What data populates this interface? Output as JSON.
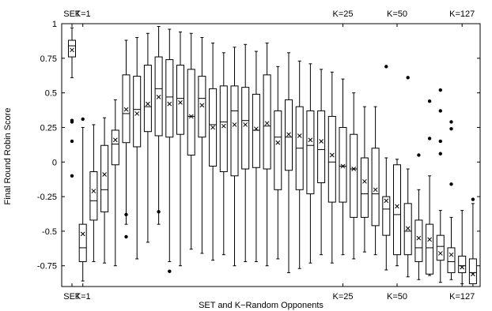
{
  "chart_data": {
    "type": "boxplot",
    "xlabel": "SET and K−Random Opponents",
    "ylabel": "Final Round Robin Score",
    "ylim": [
      -0.9,
      1.0
    ],
    "yticks": [
      "1",
      "0.75",
      "0.5",
      "0.25",
      "0",
      "-0.25",
      "-0.5",
      "-0.75"
    ],
    "ytick_values": [
      1,
      0.75,
      0.5,
      0.25,
      0,
      -0.25,
      -0.5,
      -0.75
    ],
    "top_labels": [
      {
        "label": "SET",
        "index": 0
      },
      {
        "label": "K=1",
        "index": 1
      },
      {
        "label": "K=25",
        "index": 25
      },
      {
        "label": "K=50",
        "index": 30
      },
      {
        "label": "K=127",
        "index": 36
      }
    ],
    "bottom_labels": [
      {
        "label": "SET",
        "index": 0
      },
      {
        "label": "K=1",
        "index": 1
      },
      {
        "label": "K=25",
        "index": 25
      },
      {
        "label": "K=50",
        "index": 30
      },
      {
        "label": "K=127",
        "index": 36
      }
    ],
    "boxes": [
      {
        "whislo": 0.61,
        "q1": 0.76,
        "med": 0.84,
        "q3": 0.88,
        "whishi": 0.97,
        "mean": 0.81,
        "fliers": [
          0.3,
          0.29,
          0.15,
          -0.1
        ]
      },
      {
        "whislo": -0.86,
        "q1": -0.72,
        "med": -0.62,
        "q3": -0.45,
        "whishi": 0.25,
        "mean": -0.52,
        "fliers": [
          0.31
        ]
      },
      {
        "whislo": -0.72,
        "q1": -0.42,
        "med": -0.28,
        "q3": -0.07,
        "whishi": 0.27,
        "mean": -0.21,
        "fliers": []
      },
      {
        "whislo": -0.73,
        "q1": -0.36,
        "med": -0.2,
        "q3": 0.12,
        "whishi": 0.32,
        "mean": -0.09,
        "fliers": []
      },
      {
        "whislo": -0.75,
        "q1": -0.02,
        "med": 0.13,
        "q3": 0.23,
        "whishi": 0.45,
        "mean": 0.16,
        "fliers": []
      },
      {
        "whislo": -0.45,
        "q1": 0.14,
        "med": 0.35,
        "q3": 0.63,
        "whishi": 0.88,
        "mean": 0.38,
        "fliers": [
          -0.38,
          -0.54
        ]
      },
      {
        "whislo": -0.7,
        "q1": 0.11,
        "med": 0.38,
        "q3": 0.62,
        "whishi": 0.9,
        "mean": 0.35,
        "fliers": []
      },
      {
        "whislo": -0.58,
        "q1": 0.22,
        "med": 0.4,
        "q3": 0.7,
        "whishi": 0.93,
        "mean": 0.42,
        "fliers": []
      },
      {
        "whislo": -0.45,
        "q1": 0.19,
        "med": 0.53,
        "q3": 0.76,
        "whishi": 0.98,
        "mean": 0.47,
        "fliers": [
          -0.36
        ]
      },
      {
        "whislo": -0.72,
        "q1": 0.18,
        "med": 0.47,
        "q3": 0.74,
        "whishi": 0.96,
        "mean": 0.42,
        "fliers": [
          -0.79
        ]
      },
      {
        "whislo": -0.75,
        "q1": 0.2,
        "med": 0.46,
        "q3": 0.7,
        "whishi": 0.94,
        "mean": 0.43,
        "fliers": []
      },
      {
        "whislo": -0.63,
        "q1": 0.05,
        "med": 0.33,
        "q3": 0.67,
        "whishi": 0.93,
        "mean": 0.33,
        "fliers": []
      },
      {
        "whislo": -0.66,
        "q1": 0.18,
        "med": 0.46,
        "q3": 0.62,
        "whishi": 0.9,
        "mean": 0.41,
        "fliers": []
      },
      {
        "whislo": -0.71,
        "q1": -0.03,
        "med": 0.27,
        "q3": 0.53,
        "whishi": 0.86,
        "mean": 0.25,
        "fliers": []
      },
      {
        "whislo": -0.67,
        "q1": -0.07,
        "med": 0.29,
        "q3": 0.55,
        "whishi": 0.79,
        "mean": 0.26,
        "fliers": []
      },
      {
        "whislo": -0.75,
        "q1": -0.1,
        "med": 0.37,
        "q3": 0.55,
        "whishi": 0.83,
        "mean": 0.27,
        "fliers": []
      },
      {
        "whislo": -0.72,
        "q1": -0.05,
        "med": 0.3,
        "q3": 0.54,
        "whishi": 0.85,
        "mean": 0.27,
        "fliers": []
      },
      {
        "whislo": -0.72,
        "q1": -0.04,
        "med": 0.23,
        "q3": 0.49,
        "whishi": 0.8,
        "mean": 0.24,
        "fliers": []
      },
      {
        "whislo": -0.75,
        "q1": -0.05,
        "med": 0.26,
        "q3": 0.63,
        "whishi": 0.86,
        "mean": 0.28,
        "fliers": []
      },
      {
        "whislo": -0.7,
        "q1": -0.2,
        "med": 0.18,
        "q3": 0.37,
        "whishi": 0.69,
        "mean": 0.14,
        "fliers": []
      },
      {
        "whislo": -0.8,
        "q1": -0.06,
        "med": 0.18,
        "q3": 0.45,
        "whishi": 0.79,
        "mean": 0.2,
        "fliers": []
      },
      {
        "whislo": -0.77,
        "q1": -0.2,
        "med": 0.1,
        "q3": 0.4,
        "whishi": 0.73,
        "mean": 0.19,
        "fliers": []
      },
      {
        "whislo": -0.73,
        "q1": -0.23,
        "med": 0.12,
        "q3": 0.37,
        "whishi": 0.71,
        "mean": 0.16,
        "fliers": []
      },
      {
        "whislo": -0.67,
        "q1": -0.15,
        "med": 0.09,
        "q3": 0.37,
        "whishi": 0.67,
        "mean": 0.15,
        "fliers": []
      },
      {
        "whislo": -0.73,
        "q1": -0.29,
        "med": 0.0,
        "q3": 0.33,
        "whishi": 0.65,
        "mean": 0.05,
        "fliers": []
      },
      {
        "whislo": -0.67,
        "q1": -0.29,
        "med": -0.03,
        "q3": 0.25,
        "whishi": 0.6,
        "mean": -0.03,
        "fliers": []
      },
      {
        "whislo": -0.7,
        "q1": -0.4,
        "med": -0.05,
        "q3": 0.2,
        "whishi": 0.5,
        "mean": -0.05,
        "fliers": []
      },
      {
        "whislo": -0.65,
        "q1": -0.4,
        "med": -0.23,
        "q3": 0.03,
        "whishi": 0.4,
        "mean": -0.14,
        "fliers": []
      },
      {
        "whislo": -0.67,
        "q1": -0.46,
        "med": -0.23,
        "q3": 0.1,
        "whishi": 0.4,
        "mean": -0.2,
        "fliers": []
      },
      {
        "whislo": -0.78,
        "q1": -0.53,
        "med": -0.34,
        "q3": -0.25,
        "whishi": 0.03,
        "mean": -0.28,
        "fliers": [
          0.69
        ]
      },
      {
        "whislo": -0.75,
        "q1": -0.67,
        "med": -0.38,
        "q3": -0.02,
        "whishi": 0.02,
        "mean": -0.32,
        "fliers": []
      },
      {
        "whislo": -0.83,
        "q1": -0.67,
        "med": -0.5,
        "q3": -0.3,
        "whishi": -0.05,
        "mean": -0.48,
        "fliers": [
          0.61
        ]
      },
      {
        "whislo": -0.85,
        "q1": -0.72,
        "med": -0.62,
        "q3": -0.42,
        "whishi": -0.2,
        "mean": -0.55,
        "fliers": [
          0.05
        ]
      },
      {
        "whislo": -0.82,
        "q1": -0.81,
        "med": -0.62,
        "q3": -0.45,
        "whishi": -0.1,
        "mean": -0.56,
        "fliers": [
          0.44,
          0.17
        ]
      },
      {
        "whislo": -0.87,
        "q1": -0.71,
        "med": -0.61,
        "q3": -0.53,
        "whishi": -0.35,
        "mean": -0.66,
        "fliers": [
          0.52,
          0.06,
          0.37,
          0.15
        ]
      },
      {
        "whislo": -0.85,
        "q1": -0.8,
        "med": -0.72,
        "q3": -0.62,
        "whishi": -0.4,
        "mean": -0.67,
        "fliers": [
          0.29,
          0.24,
          -0.16
        ]
      },
      {
        "whislo": -0.88,
        "q1": -0.8,
        "med": -0.75,
        "q3": -0.68,
        "whishi": -0.35,
        "mean": -0.76,
        "fliers": []
      },
      {
        "whislo": -0.9,
        "q1": -0.88,
        "med": -0.8,
        "q3": -0.7,
        "whishi": -0.3,
        "mean": -0.81,
        "fliers": [
          -0.27
        ]
      }
    ]
  }
}
